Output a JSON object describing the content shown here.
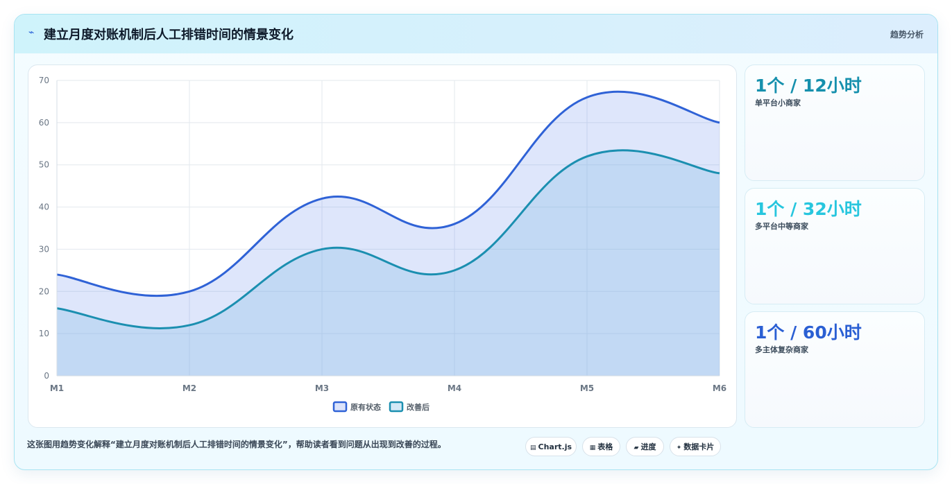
{
  "header": {
    "icon": "bolt-icon",
    "title": "建立月度对账机制后人工排错时间的情景变化",
    "tag": "趋势分析"
  },
  "chart_data": {
    "type": "area",
    "categories": [
      "M1",
      "M2",
      "M3",
      "M4",
      "M5",
      "M6"
    ],
    "series": [
      {
        "name": "原有状态",
        "values": [
          24,
          20,
          42,
          36,
          66,
          60
        ],
        "color": "#2f62d6"
      },
      {
        "name": "改善后",
        "values": [
          16,
          12,
          30,
          25,
          52,
          48
        ],
        "color": "#1b8fb0"
      }
    ],
    "ylim": [
      0,
      70
    ],
    "yticks": [
      0,
      10,
      20,
      30,
      40,
      50,
      60,
      70
    ],
    "grid": true,
    "legend": "bottom"
  },
  "stats": [
    {
      "value": "1个 / 12小时",
      "label": "单平台小商家",
      "color": "#1690ad"
    },
    {
      "value": "1个 / 32小时",
      "label": "多平台中等商家",
      "color": "#27c6de"
    },
    {
      "value": "1个 / 60小时",
      "label": "多主体复杂商家",
      "color": "#2a5fd3"
    }
  ],
  "footer": {
    "description": "这张图用趋势变化解释“建立月度对账机制后人工排错时间的情景变化”，帮助读者看到问题从出现到改善的过程。",
    "pills": [
      {
        "icon": "chart-icon",
        "glyph": "▤",
        "label": "Chart.js"
      },
      {
        "icon": "table-icon",
        "glyph": "▦",
        "label": "表格"
      },
      {
        "icon": "progress-icon",
        "glyph": "▰",
        "label": "进度"
      },
      {
        "icon": "sparkle-icon",
        "glyph": "✦",
        "label": "数据卡片"
      }
    ]
  }
}
